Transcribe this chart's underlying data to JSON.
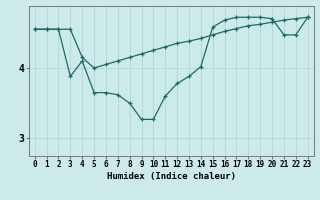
{
  "xlabel": "Humidex (Indice chaleur)",
  "x": [
    0,
    1,
    2,
    3,
    4,
    5,
    6,
    7,
    8,
    9,
    10,
    11,
    12,
    13,
    14,
    15,
    16,
    17,
    18,
    19,
    20,
    21,
    22,
    23
  ],
  "line1_y": [
    4.55,
    4.55,
    4.55,
    3.88,
    4.1,
    3.65,
    3.65,
    3.62,
    3.5,
    3.27,
    3.27,
    3.6,
    3.78,
    3.88,
    4.02,
    4.58,
    4.68,
    4.72,
    4.72,
    4.72,
    4.7,
    4.47,
    4.47,
    4.72
  ],
  "line2_y": [
    4.55,
    4.55,
    4.55,
    4.55,
    4.15,
    4.0,
    4.05,
    4.1,
    4.15,
    4.2,
    4.25,
    4.3,
    4.35,
    4.38,
    4.42,
    4.47,
    4.52,
    4.56,
    4.6,
    4.62,
    4.65,
    4.68,
    4.7,
    4.72
  ],
  "line_color": "#1c6b62",
  "bg_color": "#cceaea",
  "grid_color": "#b5d8d8",
  "ylim_min": 2.75,
  "ylim_max": 4.88,
  "ytick_vals": [
    3,
    4
  ],
  "xtick_vals": [
    0,
    1,
    2,
    3,
    4,
    5,
    6,
    7,
    8,
    9,
    10,
    11,
    12,
    13,
    14,
    15,
    16,
    17,
    18,
    19,
    20,
    21,
    22,
    23
  ],
  "marker": "+",
  "markersize": 3.5,
  "linewidth": 0.9,
  "xlabel_fontsize": 6.5,
  "tick_fontsize": 5.5,
  "ytick_fontsize": 7
}
